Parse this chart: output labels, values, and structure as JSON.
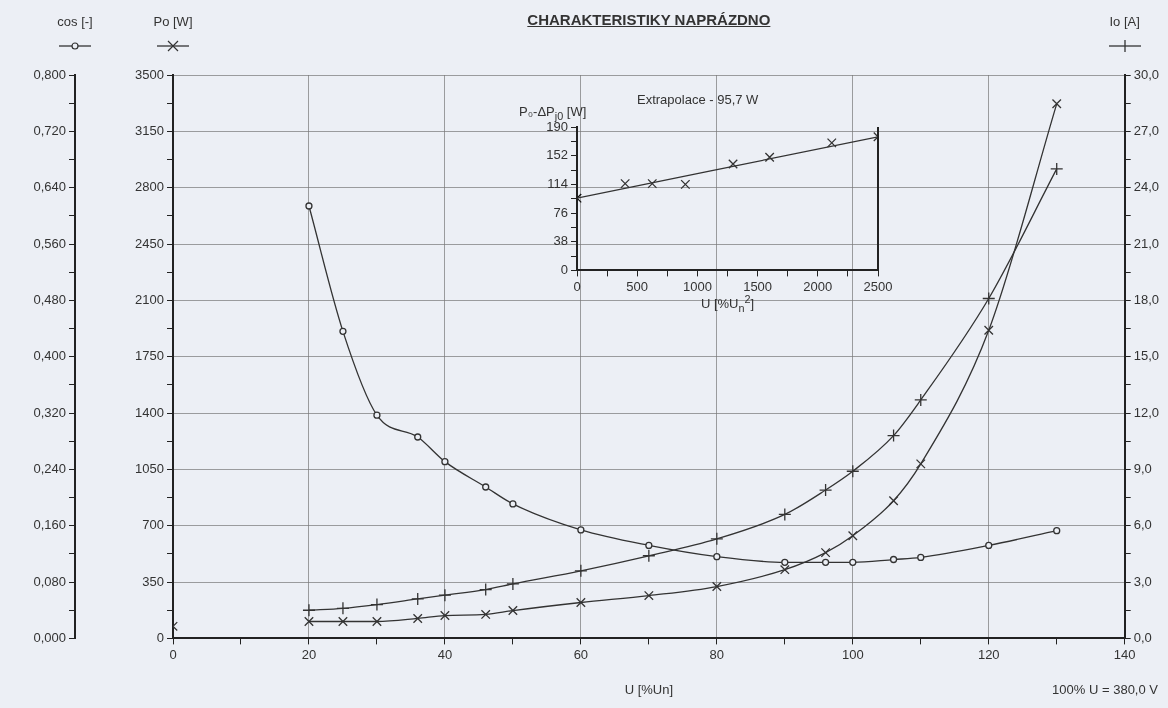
{
  "chart_data": [
    {
      "type": "line",
      "title": "CHARAKTERISTIKY NAPRÁZDNO",
      "xlabel": "U [%Un]",
      "ylabel": "Po [W]",
      "y2label": "Io [A]",
      "y3label": "cos [-]",
      "annotations": [
        "100% U = 380,0 V"
      ],
      "grid": true,
      "xlim": [
        0,
        140
      ],
      "xticks": [
        0,
        {
          "value": 10,
          "label": null
        },
        20,
        {
          "value": 30,
          "label": null
        },
        40,
        {
          "value": 50,
          "label": null
        },
        60,
        {
          "value": 70,
          "label": null
        },
        80,
        {
          "value": 90,
          "label": null
        },
        100,
        {
          "value": 110,
          "label": null
        },
        120,
        {
          "value": 130,
          "label": null
        },
        140
      ],
      "ylim": [
        0,
        3500
      ],
      "yticks": [
        0,
        {
          "value": 175,
          "label": null
        },
        350,
        {
          "value": 525,
          "label": null
        },
        700,
        {
          "value": 875,
          "label": null
        },
        1050,
        {
          "value": 1225,
          "label": null
        },
        1400,
        {
          "value": 1575,
          "label": null
        },
        1750,
        {
          "value": 1925,
          "label": null
        },
        2100,
        {
          "value": 2275,
          "label": null
        },
        2450,
        {
          "value": 2625,
          "label": null
        },
        2800,
        {
          "value": 2975,
          "label": null
        },
        3150,
        {
          "value": 3325,
          "label": null
        },
        3500
      ],
      "y2lim": [
        0,
        30
      ],
      "y2ticks": [
        {
          "value": 0,
          "label": "0,0"
        },
        {
          "value": 1.5,
          "label": null
        },
        {
          "value": 3,
          "label": "3,0"
        },
        {
          "value": 4.5,
          "label": null
        },
        {
          "value": 6,
          "label": "6,0"
        },
        {
          "value": 7.5,
          "label": null
        },
        {
          "value": 9,
          "label": "9,0"
        },
        {
          "value": 10.5,
          "label": null
        },
        {
          "value": 12,
          "label": "12,0"
        },
        {
          "value": 13.5,
          "label": null
        },
        {
          "value": 15,
          "label": "15,0"
        },
        {
          "value": 16.5,
          "label": null
        },
        {
          "value": 18,
          "label": "18,0"
        },
        {
          "value": 19.5,
          "label": null
        },
        {
          "value": 21,
          "label": "21,0"
        },
        {
          "value": 22.5,
          "label": null
        },
        {
          "value": 24,
          "label": "24,0"
        },
        {
          "value": 25.5,
          "label": null
        },
        {
          "value": 27,
          "label": "27,0"
        },
        {
          "value": 28.5,
          "label": null
        },
        {
          "value": 30,
          "label": "30,0"
        }
      ],
      "y3lim": [
        0,
        0.8
      ],
      "y3ticks": [
        {
          "value": 0,
          "label": "0,000"
        },
        {
          "value": 0.04,
          "label": null
        },
        {
          "value": 0.08,
          "label": "0,080"
        },
        {
          "value": 0.12,
          "label": null
        },
        {
          "value": 0.16,
          "label": "0,160"
        },
        {
          "value": 0.2,
          "label": null
        },
        {
          "value": 0.24,
          "label": "0,240"
        },
        {
          "value": 0.28,
          "label": null
        },
        {
          "value": 0.32,
          "label": "0,320"
        },
        {
          "value": 0.36,
          "label": null
        },
        {
          "value": 0.4,
          "label": "0,400"
        },
        {
          "value": 0.44,
          "label": null
        },
        {
          "value": 0.48,
          "label": "0,480"
        },
        {
          "value": 0.52,
          "label": null
        },
        {
          "value": 0.56,
          "label": "0,560"
        },
        {
          "value": 0.6,
          "label": null
        },
        {
          "value": 0.64,
          "label": "0,640"
        },
        {
          "value": 0.68,
          "label": null
        },
        {
          "value": 0.72,
          "label": "0,720"
        },
        {
          "value": 0.76,
          "label": null
        },
        {
          "value": 0.8,
          "label": "0,800"
        }
      ],
      "series": [
        {
          "axis": "y3",
          "marker": "circle",
          "color": "#333333",
          "x": [
            20,
            25,
            30,
            36,
            40,
            46,
            50,
            60,
            70,
            80,
            90,
            96,
            100,
            106,
            110,
            120,
            130
          ],
          "values": [
            0.614,
            0.436,
            0.317,
            0.286,
            0.251,
            0.215,
            0.191,
            0.154,
            0.132,
            0.116,
            0.108,
            0.108,
            0.108,
            0.112,
            0.115,
            0.132,
            0.153
          ]
        },
        {
          "axis": "y",
          "marker": "cross",
          "color": "#333333",
          "x": [
            20,
            25,
            30,
            36,
            40,
            46,
            50,
            60,
            70,
            80,
            90,
            96,
            100,
            106,
            110,
            120,
            130
          ],
          "values": [
            105,
            105,
            105,
            124,
            142,
            149,
            173,
            223,
            266,
            322,
            427,
            533,
            638,
            855,
            1084,
            1914,
            3321
          ]
        },
        {
          "axis": "y",
          "type": "scatter",
          "marker": "cross",
          "color": "#333333",
          "x": [
            0
          ],
          "values": [
            75
          ]
        },
        {
          "axis": "y2",
          "marker": "plus",
          "color": "#333333",
          "x": [
            20,
            25,
            30,
            36,
            40,
            46,
            50,
            60,
            70,
            80,
            90,
            96,
            100,
            106,
            110,
            120,
            130
          ],
          "values": [
            1.5,
            1.6,
            1.8,
            2.1,
            2.3,
            2.6,
            2.9,
            3.6,
            4.4,
            5.3,
            6.6,
            7.9,
            8.9,
            10.8,
            12.7,
            18.1,
            25.0
          ]
        }
      ]
    },
    {
      "type": "scatter",
      "title": "Extrapolace - 95,7 W",
      "xlabel": "U [%U$_{n}$$^{2}$]",
      "ylabel": "P₀-ΔP$_{j0}$ [W]",
      "xlim": [
        0,
        2500
      ],
      "xticks": [
        0,
        {
          "value": 250,
          "label": null
        },
        500,
        {
          "value": 750,
          "label": null
        },
        1000,
        {
          "value": 1250,
          "label": null
        },
        1500,
        {
          "value": 1750,
          "label": null
        },
        2000,
        {
          "value": 2250,
          "label": null
        },
        2500
      ],
      "ylim": [
        0,
        190
      ],
      "yticks": [
        0,
        {
          "value": 19,
          "label": null
        },
        38,
        {
          "value": 57,
          "label": null
        },
        76,
        {
          "value": 95,
          "label": null
        },
        114,
        {
          "value": 133,
          "label": null
        },
        152,
        {
          "value": 171,
          "label": null
        },
        190
      ],
      "series": [
        {
          "marker": "cross",
          "color": "#333333",
          "x": [
            400,
            625,
            900,
            1296,
            1600,
            2116,
            2500
          ],
          "values": [
            115,
            115,
            114,
            141,
            150,
            169,
            177
          ]
        },
        {
          "type": "line",
          "marker": "none",
          "color": "#333333",
          "x": [
            0,
            2500
          ],
          "values": [
            95.7,
            177
          ]
        },
        {
          "marker": "cross",
          "color": "#111111",
          "x": [
            0
          ],
          "values": [
            95.7
          ]
        }
      ]
    }
  ]
}
